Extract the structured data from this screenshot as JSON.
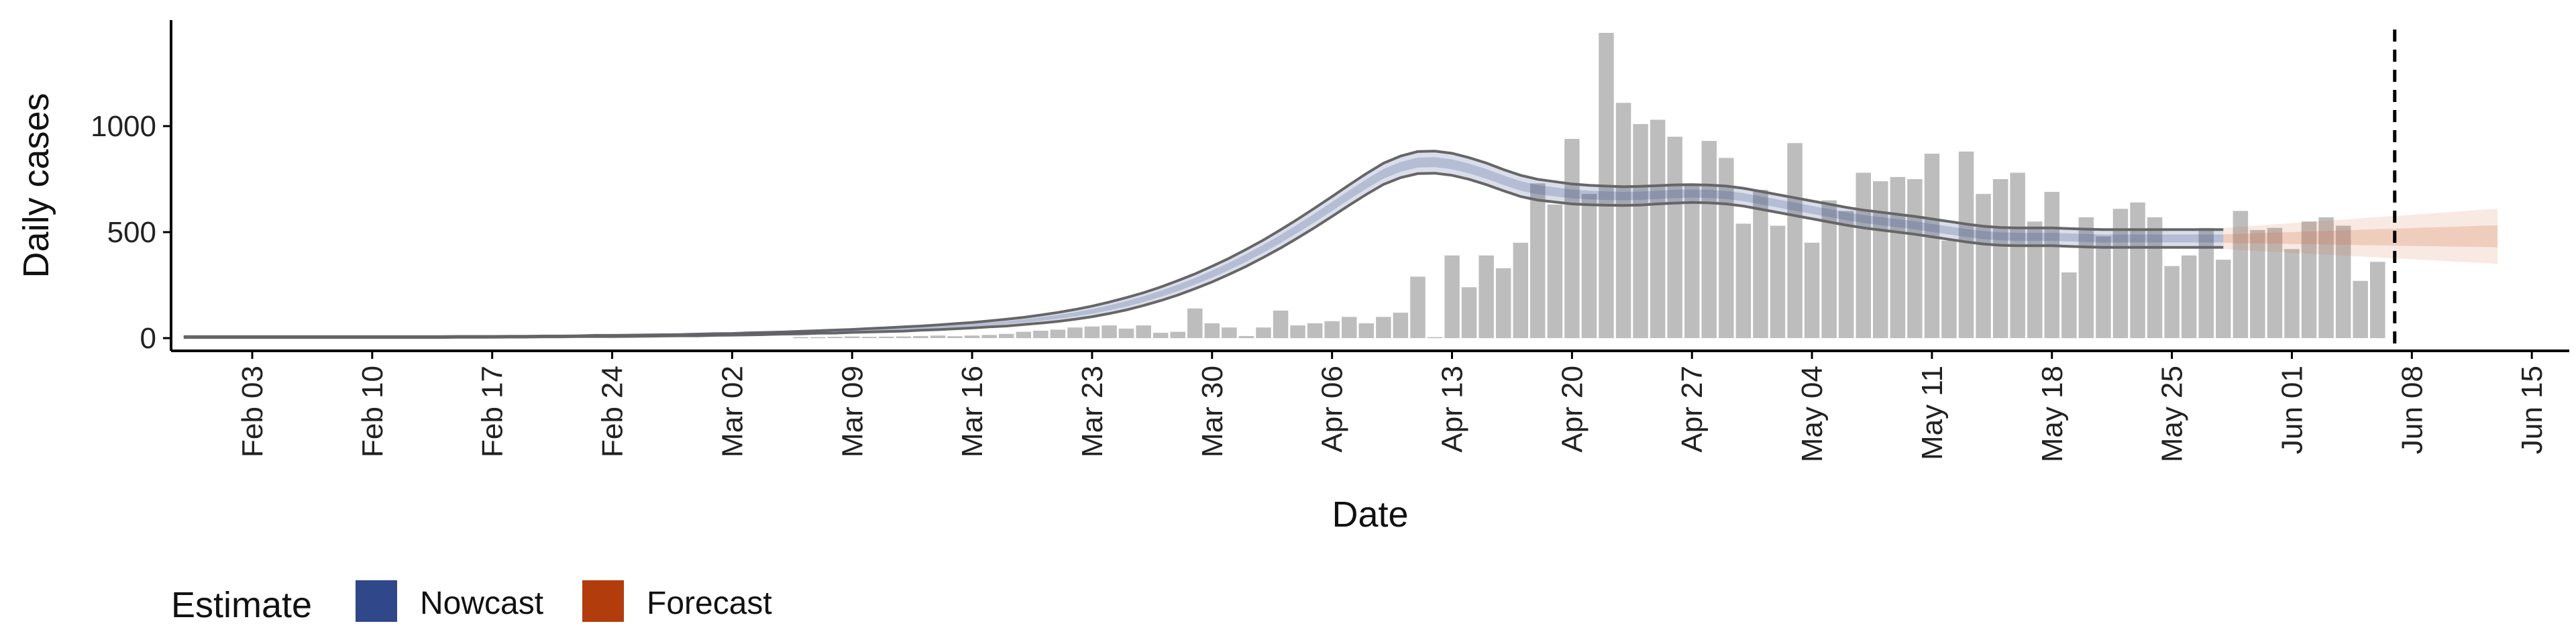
{
  "chart_data": {
    "type": "bar",
    "xlabel": "Date",
    "ylabel": "Daily cases",
    "ylim": [
      -60,
      1500
    ],
    "y_ticks": [
      0,
      500,
      1000
    ],
    "x_range_days": [
      -6,
      128
    ],
    "x_ticks": [
      {
        "day": 0,
        "label": "Feb 03"
      },
      {
        "day": 7,
        "label": "Feb 10"
      },
      {
        "day": 14,
        "label": "Feb 17"
      },
      {
        "day": 21,
        "label": "Feb 24"
      },
      {
        "day": 28,
        "label": "Mar 02"
      },
      {
        "day": 35,
        "label": "Mar 09"
      },
      {
        "day": 42,
        "label": "Mar 16"
      },
      {
        "day": 49,
        "label": "Mar 23"
      },
      {
        "day": 56,
        "label": "Mar 30"
      },
      {
        "day": 63,
        "label": "Apr 06"
      },
      {
        "day": 70,
        "label": "Apr 13"
      },
      {
        "day": 77,
        "label": "Apr 20"
      },
      {
        "day": 84,
        "label": "Apr 27"
      },
      {
        "day": 91,
        "label": "May 04"
      },
      {
        "day": 98,
        "label": "May 11"
      },
      {
        "day": 105,
        "label": "May 18"
      },
      {
        "day": 112,
        "label": "May 25"
      },
      {
        "day": 119,
        "label": "Jun 01"
      },
      {
        "day": 126,
        "label": "Jun 08"
      },
      {
        "day": 133,
        "label": "Jun 15"
      }
    ],
    "reported_cases_start_day": 32,
    "reported_cases": [
      5,
      5,
      6,
      8,
      6,
      7,
      8,
      10,
      12,
      9,
      12,
      15,
      20,
      30,
      35,
      40,
      50,
      55,
      60,
      45,
      60,
      25,
      30,
      140,
      70,
      50,
      10,
      50,
      130,
      60,
      70,
      80,
      100,
      70,
      100,
      120,
      290,
      5,
      390,
      240,
      390,
      330,
      450,
      730,
      630,
      940,
      680,
      1440,
      1110,
      1010,
      1030,
      950,
      720,
      930,
      850,
      540,
      700,
      530,
      920,
      450,
      650,
      600,
      780,
      740,
      760,
      750,
      870,
      460,
      880,
      680,
      750,
      780,
      550,
      690,
      310,
      570,
      480,
      610,
      640,
      570,
      340,
      390,
      520,
      370,
      600,
      510,
      520,
      420,
      550,
      570,
      530,
      270,
      360
    ],
    "nowcast_start_day": -4,
    "nowcast_end_day": 115,
    "nowcast_center": [
      5,
      5,
      5,
      5,
      5,
      5,
      5,
      5,
      5,
      5,
      5,
      5,
      5,
      5,
      5,
      5,
      6,
      6,
      6,
      7,
      7,
      8,
      8,
      9,
      10,
      10,
      11,
      12,
      13,
      14,
      15,
      17,
      18,
      20,
      22,
      24,
      26,
      29,
      31,
      34,
      37,
      40,
      43,
      47,
      51,
      56,
      61,
      67,
      73,
      81,
      90,
      100,
      112,
      126,
      143,
      162,
      184,
      209,
      237,
      268,
      302,
      339,
      379,
      422,
      468,
      517,
      568,
      621,
      675,
      727,
      775,
      808,
      828,
      830,
      820,
      800,
      775,
      745,
      718,
      700,
      690,
      680,
      675,
      672,
      670,
      672,
      676,
      680,
      682,
      680,
      675,
      665,
      650,
      635,
      620,
      605,
      590,
      575,
      562,
      552,
      542,
      532,
      520,
      508,
      496,
      486,
      480,
      478,
      478,
      478,
      475,
      472,
      470,
      470,
      470,
      470,
      470,
      470,
      470,
      470
    ],
    "nowcast_outer_halfwidth": [
      2,
      2,
      2,
      2,
      2,
      2,
      2,
      2,
      2,
      2,
      2,
      2,
      2,
      2,
      2,
      2,
      2,
      2,
      2,
      2,
      2,
      2,
      2,
      2,
      3,
      3,
      3,
      3,
      3,
      3,
      4,
      4,
      4,
      5,
      5,
      5,
      6,
      6,
      7,
      7,
      8,
      9,
      10,
      10,
      11,
      12,
      13,
      14,
      16,
      17,
      19,
      21,
      23,
      25,
      27,
      29,
      30,
      32,
      34,
      35,
      37,
      38,
      40,
      41,
      43,
      44,
      46,
      47,
      48,
      49,
      50,
      51,
      52,
      52,
      52,
      51,
      51,
      50,
      50,
      49,
      48,
      47,
      46,
      45,
      44,
      44,
      43,
      43,
      42,
      42,
      42,
      42,
      42,
      42,
      42,
      42,
      42,
      42,
      42,
      42,
      42,
      42,
      42,
      42,
      42,
      42,
      42,
      42,
      42,
      42,
      42,
      42,
      42,
      42,
      42,
      42,
      42,
      42,
      42,
      42
    ],
    "forecast_start_day": 115,
    "forecast_end_day": 131,
    "forecast_center": [
      470,
      470,
      471,
      472,
      472,
      473,
      474,
      474,
      475,
      476,
      476,
      477,
      478,
      478,
      479,
      480,
      480
    ],
    "forecast_outer_halfwidth": [
      50,
      55,
      60,
      65,
      70,
      75,
      80,
      85,
      90,
      95,
      100,
      105,
      110,
      115,
      120,
      125,
      130
    ],
    "forecast_inner_halfwidth": [
      20,
      22,
      24,
      26,
      28,
      30,
      32,
      34,
      36,
      38,
      40,
      42,
      44,
      46,
      48,
      50,
      52
    ],
    "vline_day": 125,
    "legend": {
      "title": "Estimate",
      "items": [
        {
          "label": "Nowcast",
          "color": "#30478a"
        },
        {
          "label": "Forecast",
          "color": "#b23c0c"
        }
      ],
      "position": "bottom"
    },
    "colors": {
      "bars": "#bdbdbd",
      "nowcast_fill": "#30478a",
      "forecast_fill": "#d36b3a",
      "band_outline": "#666666",
      "vline": "#000000",
      "axis": "#000000"
    }
  }
}
